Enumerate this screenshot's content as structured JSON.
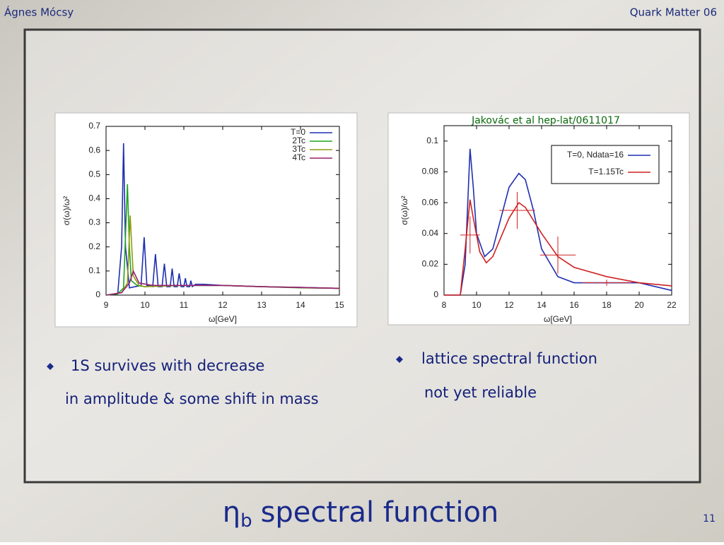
{
  "header": {
    "author": "Ágnes Mócsy",
    "conference": "Quark Matter 06"
  },
  "citation": "Jakovác et al hep-lat/0611017",
  "bullets": [
    {
      "lines": [
        "1S survives with decrease",
        "in amplitude & some shift in mass"
      ]
    },
    {
      "lines": [
        "lattice spectral function",
        "not yet reliable"
      ]
    }
  ],
  "title": {
    "symbol": "η",
    "subscript": "b",
    "text": "spectral function"
  },
  "page_number": "11",
  "chart_data": [
    {
      "type": "line",
      "xlabel": "ω[GeV]",
      "ylabel": "σ(ω)/ω²",
      "xlim": [
        9,
        15
      ],
      "ylim": [
        0,
        0.7
      ],
      "xticks": [
        9,
        10,
        11,
        12,
        13,
        14,
        15
      ],
      "yticks": [
        0,
        0.1,
        0.2,
        0.3,
        0.4,
        0.5,
        0.6,
        0.7
      ],
      "legend": "upper right",
      "series": [
        {
          "name": "T=0",
          "color": "#1f2fb0",
          "x": [
            9.0,
            9.3,
            9.4,
            9.45,
            9.5,
            9.6,
            9.9,
            9.98,
            10.05,
            10.2,
            10.27,
            10.34,
            10.44,
            10.5,
            10.56,
            10.65,
            10.7,
            10.75,
            10.83,
            10.88,
            10.93,
            11.0,
            11.04,
            11.08,
            11.15,
            11.18,
            11.22,
            11.3,
            11.5,
            12,
            13,
            14,
            15
          ],
          "values": [
            0,
            0.005,
            0.2,
            0.63,
            0.2,
            0.03,
            0.04,
            0.24,
            0.04,
            0.035,
            0.17,
            0.035,
            0.035,
            0.13,
            0.035,
            0.035,
            0.11,
            0.035,
            0.035,
            0.09,
            0.035,
            0.035,
            0.07,
            0.035,
            0.035,
            0.06,
            0.035,
            0.045,
            0.045,
            0.04,
            0.035,
            0.032,
            0.028
          ]
        },
        {
          "name": "2Tc",
          "color": "#1ea51e",
          "x": [
            9,
            9.3,
            9.45,
            9.55,
            9.6,
            9.65,
            9.8,
            10,
            10.5,
            11,
            12,
            13,
            14,
            15
          ],
          "values": [
            0,
            0.005,
            0.03,
            0.46,
            0.2,
            0.06,
            0.04,
            0.035,
            0.04,
            0.04,
            0.04,
            0.035,
            0.03,
            0.028
          ]
        },
        {
          "name": "3Tc",
          "color": "#8f9a10",
          "x": [
            9,
            9.4,
            9.55,
            9.62,
            9.7,
            9.85,
            10,
            11,
            12,
            13,
            15
          ],
          "values": [
            0,
            0.01,
            0.05,
            0.33,
            0.08,
            0.04,
            0.035,
            0.04,
            0.04,
            0.035,
            0.028
          ]
        },
        {
          "name": "4Tc",
          "color": "#9a2070",
          "x": [
            9,
            9.4,
            9.6,
            9.7,
            9.85,
            10.2,
            11,
            12,
            13,
            15
          ],
          "values": [
            0,
            0.01,
            0.05,
            0.1,
            0.05,
            0.04,
            0.04,
            0.04,
            0.035,
            0.028
          ]
        }
      ]
    },
    {
      "type": "line",
      "xlabel": "ω[GeV]",
      "ylabel": "σ(ω)/ω²",
      "xlim": [
        8,
        22
      ],
      "ylim": [
        0,
        0.11
      ],
      "xticks": [
        8,
        10,
        12,
        14,
        16,
        18,
        20,
        22
      ],
      "yticks": [
        0,
        0.02,
        0.04,
        0.06,
        0.08,
        0.1
      ],
      "legend": "upper right",
      "series": [
        {
          "name": "T=0, Ndata=16",
          "color": "#1f2fb0",
          "x": [
            8,
            9,
            9.3,
            9.6,
            9.8,
            10,
            10.5,
            11,
            11.5,
            12,
            12.6,
            13,
            13.5,
            14,
            15,
            16,
            18,
            20,
            22
          ],
          "values": [
            0,
            0,
            0.02,
            0.095,
            0.07,
            0.04,
            0.025,
            0.03,
            0.05,
            0.07,
            0.079,
            0.075,
            0.055,
            0.03,
            0.012,
            0.008,
            0.008,
            0.008,
            0.003
          ]
        },
        {
          "name": "T=1.15Tc",
          "color": "#d02020",
          "x": [
            8,
            9,
            9.3,
            9.6,
            9.8,
            10.2,
            10.6,
            11,
            12,
            12.6,
            13,
            14,
            15,
            16,
            18,
            20,
            22
          ],
          "values": [
            0,
            0,
            0.03,
            0.062,
            0.05,
            0.028,
            0.021,
            0.025,
            0.05,
            0.06,
            0.057,
            0.04,
            0.025,
            0.018,
            0.012,
            0.008,
            0.006
          ]
        }
      ],
      "error_bars": {
        "color": "#d02020",
        "x": [
          9.6,
          12.5,
          15,
          18
        ],
        "values": [
          0.039,
          0.055,
          0.026,
          0.008
        ],
        "xerr": [
          0.6,
          1.1,
          1.1,
          1.5
        ],
        "yerr": [
          0.012,
          0.012,
          0.012,
          0.002
        ]
      }
    }
  ]
}
